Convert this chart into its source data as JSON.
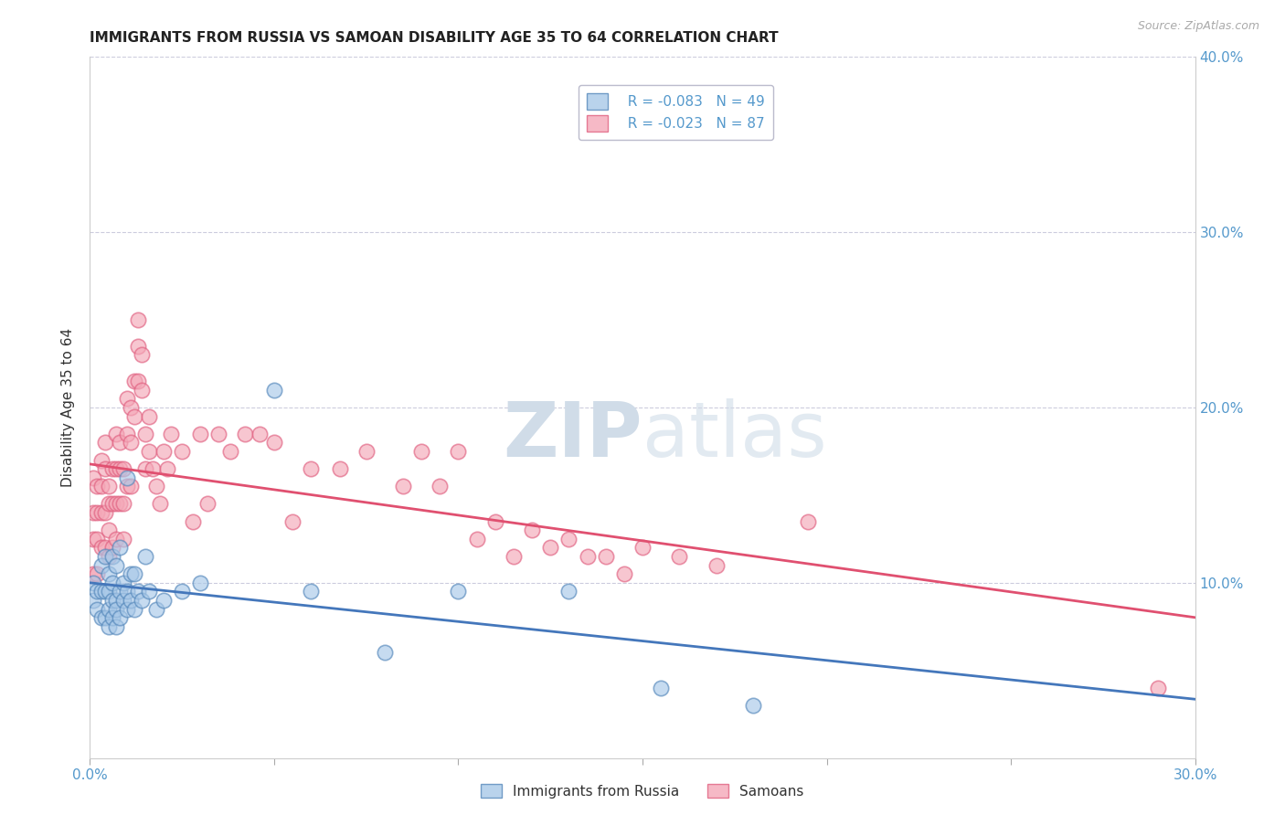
{
  "title": "IMMIGRANTS FROM RUSSIA VS SAMOAN DISABILITY AGE 35 TO 64 CORRELATION CHART",
  "source": "Source: ZipAtlas.com",
  "ylabel": "Disability Age 35 to 64",
  "xlim": [
    0,
    0.3
  ],
  "ylim": [
    0,
    0.4
  ],
  "legend_labels": [
    "Immigrants from Russia",
    "Samoans"
  ],
  "R_blue": -0.083,
  "N_blue": 49,
  "R_pink": -0.023,
  "N_pink": 87,
  "blue_color": "#a8c8e8",
  "pink_color": "#f4a8b8",
  "blue_edge_color": "#5588bb",
  "pink_edge_color": "#e06080",
  "blue_line_color": "#4477bb",
  "pink_line_color": "#e05070",
  "watermark_color": "#d0dce8",
  "blue_x": [
    0.001,
    0.001,
    0.002,
    0.002,
    0.003,
    0.003,
    0.003,
    0.004,
    0.004,
    0.004,
    0.005,
    0.005,
    0.005,
    0.005,
    0.006,
    0.006,
    0.006,
    0.006,
    0.007,
    0.007,
    0.007,
    0.007,
    0.008,
    0.008,
    0.008,
    0.009,
    0.009,
    0.01,
    0.01,
    0.01,
    0.011,
    0.011,
    0.012,
    0.012,
    0.013,
    0.014,
    0.015,
    0.016,
    0.018,
    0.02,
    0.025,
    0.03,
    0.05,
    0.06,
    0.08,
    0.1,
    0.13,
    0.155,
    0.18
  ],
  "blue_y": [
    0.1,
    0.09,
    0.095,
    0.085,
    0.11,
    0.095,
    0.08,
    0.095,
    0.115,
    0.08,
    0.085,
    0.095,
    0.075,
    0.105,
    0.09,
    0.1,
    0.115,
    0.08,
    0.09,
    0.085,
    0.11,
    0.075,
    0.095,
    0.08,
    0.12,
    0.09,
    0.1,
    0.085,
    0.095,
    0.16,
    0.105,
    0.09,
    0.105,
    0.085,
    0.095,
    0.09,
    0.115,
    0.095,
    0.085,
    0.09,
    0.095,
    0.1,
    0.21,
    0.095,
    0.06,
    0.095,
    0.095,
    0.04,
    0.03
  ],
  "pink_x": [
    0.001,
    0.001,
    0.001,
    0.001,
    0.002,
    0.002,
    0.002,
    0.002,
    0.003,
    0.003,
    0.003,
    0.003,
    0.004,
    0.004,
    0.004,
    0.004,
    0.005,
    0.005,
    0.005,
    0.005,
    0.006,
    0.006,
    0.006,
    0.007,
    0.007,
    0.007,
    0.007,
    0.008,
    0.008,
    0.008,
    0.009,
    0.009,
    0.009,
    0.01,
    0.01,
    0.01,
    0.011,
    0.011,
    0.011,
    0.012,
    0.012,
    0.013,
    0.013,
    0.013,
    0.014,
    0.014,
    0.015,
    0.015,
    0.016,
    0.016,
    0.017,
    0.018,
    0.019,
    0.02,
    0.021,
    0.022,
    0.025,
    0.028,
    0.03,
    0.032,
    0.035,
    0.038,
    0.042,
    0.046,
    0.05,
    0.055,
    0.06,
    0.068,
    0.075,
    0.085,
    0.09,
    0.095,
    0.1,
    0.105,
    0.11,
    0.115,
    0.12,
    0.125,
    0.13,
    0.135,
    0.14,
    0.145,
    0.15,
    0.16,
    0.17,
    0.195,
    0.29
  ],
  "pink_y": [
    0.16,
    0.14,
    0.125,
    0.105,
    0.155,
    0.14,
    0.125,
    0.105,
    0.17,
    0.155,
    0.14,
    0.12,
    0.18,
    0.165,
    0.14,
    0.12,
    0.155,
    0.145,
    0.13,
    0.115,
    0.165,
    0.145,
    0.12,
    0.185,
    0.165,
    0.145,
    0.125,
    0.18,
    0.165,
    0.145,
    0.165,
    0.145,
    0.125,
    0.205,
    0.185,
    0.155,
    0.2,
    0.18,
    0.155,
    0.215,
    0.195,
    0.25,
    0.235,
    0.215,
    0.23,
    0.21,
    0.185,
    0.165,
    0.195,
    0.175,
    0.165,
    0.155,
    0.145,
    0.175,
    0.165,
    0.185,
    0.175,
    0.135,
    0.185,
    0.145,
    0.185,
    0.175,
    0.185,
    0.185,
    0.18,
    0.135,
    0.165,
    0.165,
    0.175,
    0.155,
    0.175,
    0.155,
    0.175,
    0.125,
    0.135,
    0.115,
    0.13,
    0.12,
    0.125,
    0.115,
    0.115,
    0.105,
    0.12,
    0.115,
    0.11,
    0.135,
    0.04
  ]
}
